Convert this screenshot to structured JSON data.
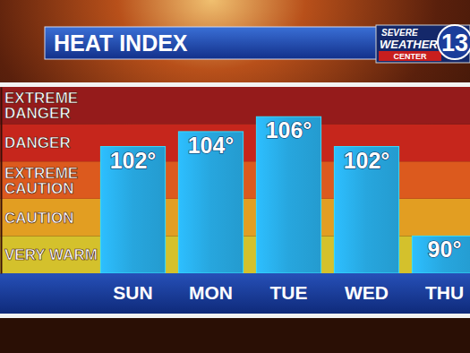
{
  "chart_data": {
    "type": "bar",
    "title": "HEAT INDEX",
    "annotations": [
      "SEVERE",
      "WEATHER",
      "CENTER",
      "13"
    ],
    "categories": [
      "SUN",
      "MON",
      "TUE",
      "WED",
      "THU"
    ],
    "values": [
      102,
      104,
      106,
      102,
      90
    ],
    "value_labels": [
      "102°",
      "104°",
      "106°",
      "102°",
      "90°"
    ],
    "color": "#27a6de",
    "ylim": [
      85,
      110
    ],
    "tick_labels": "x",
    "data_labels": true,
    "bands": [
      {
        "label": "VERY WARM",
        "from": 85,
        "to": 90,
        "color": "#d4c12c"
      },
      {
        "label": "CAUTION",
        "from": 90,
        "to": 95,
        "color": "#e29e22"
      },
      {
        "label": "EXTREME CAUTION",
        "from": 95,
        "to": 100,
        "color": "#dc5a1e"
      },
      {
        "label": "DANGER",
        "from": 100,
        "to": 105,
        "color": "#c6261c"
      },
      {
        "label": "EXTREME DANGER",
        "from": 105,
        "to": 110,
        "color": "#951b1b"
      }
    ]
  }
}
